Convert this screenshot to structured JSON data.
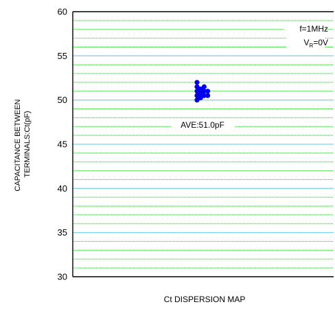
{
  "chart_data": {
    "type": "scatter",
    "title": "",
    "xlabel": "Ct DISPERSION MAP",
    "ylabel_lines": [
      "CAPACITANCE BETWEEN",
      "TERMINALS:Ct(pF)"
    ],
    "ylim": [
      30,
      60
    ],
    "yticks": [
      "60",
      "55",
      "50",
      "45",
      "40",
      "35",
      "30"
    ],
    "major_step": 5,
    "minor_step": 1,
    "grid": true,
    "annotations": {
      "freq": "f=1MHz",
      "vr_main": "V",
      "vr_sub": "R",
      "vr_value": "=0V",
      "average": "AVE:51.0pF"
    },
    "points": [
      {
        "col": 0,
        "y": 52.0
      },
      {
        "col": 0,
        "y": 51.5
      },
      {
        "col": 0,
        "y": 51.0
      },
      {
        "col": 0,
        "y": 50.5
      },
      {
        "col": 0,
        "y": 50.0
      },
      {
        "col": 1,
        "y": 51.25
      },
      {
        "col": 1,
        "y": 50.75
      },
      {
        "col": 1,
        "y": 50.25
      },
      {
        "col": 2,
        "y": 51.5
      },
      {
        "col": 2,
        "y": 51.0
      },
      {
        "col": 2,
        "y": 50.5
      },
      {
        "col": 3,
        "y": 51.0
      },
      {
        "col": 3,
        "y": 50.5
      }
    ],
    "colors": {
      "major_grid": "#7fd4f0",
      "minor_grid": "#22bb22",
      "point": "#0000ee",
      "axis": "#000000"
    }
  }
}
